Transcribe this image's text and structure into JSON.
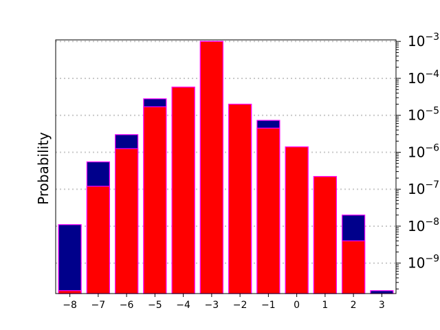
{
  "chart_data": {
    "type": "bar",
    "ylabel": "Probability",
    "yscale": "log",
    "ylim": [
      1.5e-10,
      0.0011
    ],
    "y_axis_side": "right",
    "grid": "y-dotted",
    "categories": [
      "-8",
      "-7",
      "-6",
      "-5",
      "-4",
      "-3",
      "-2",
      "-1",
      "0",
      "1",
      "2",
      "3"
    ],
    "x_tick_labels": [
      "−8",
      "−7",
      "−6",
      "−5",
      "−4",
      "−3",
      "−2",
      "−1",
      "0",
      "1",
      "2",
      "3"
    ],
    "y_ticks": [
      1e-09,
      1e-08,
      1e-07,
      1e-06,
      1e-05,
      0.0001,
      0.001
    ],
    "y_tick_labels": [
      {
        "base": "10",
        "exp": "−9"
      },
      {
        "base": "10",
        "exp": "−8"
      },
      {
        "base": "10",
        "exp": "−7"
      },
      {
        "base": "10",
        "exp": "−6"
      },
      {
        "base": "10",
        "exp": "−5"
      },
      {
        "base": "10",
        "exp": "−4"
      },
      {
        "base": "10",
        "exp": "−3"
      }
    ],
    "series": [
      {
        "color": "#00008b",
        "values": [
          1.1e-08,
          5.5e-07,
          3e-06,
          2.8e-05,
          5.8e-05,
          0.001,
          2e-05,
          7.3e-06,
          1.4e-06,
          2.2e-07,
          2e-08,
          1.8e-10
        ]
      },
      {
        "color": "#ff0000",
        "values": [
          1.8e-10,
          1.2e-07,
          1.25e-06,
          1.7e-05,
          5.8e-05,
          0.001,
          2e-05,
          4.5e-06,
          1.4e-06,
          2.2e-07,
          4e-09,
          null
        ]
      }
    ],
    "edge_color": "#ff00ff",
    "axis_color": "#000000",
    "grid_color": "#c8c8c8"
  }
}
